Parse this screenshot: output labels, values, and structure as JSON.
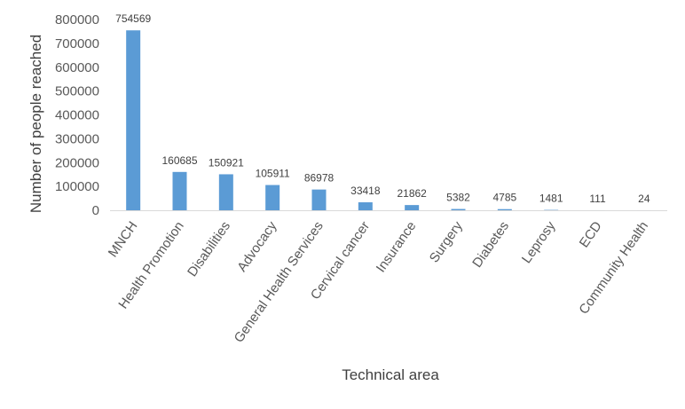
{
  "chart_data": {
    "type": "bar",
    "categories": [
      "MNCH",
      "Health Promotion",
      "Disabilities",
      "Advocacy",
      "General Health Services",
      "Cervical cancer",
      "Insurance",
      "Surgery",
      "Diabetes",
      "Leprosy",
      "ECD",
      "Community Health"
    ],
    "values": [
      754569,
      160685,
      150921,
      105911,
      86978,
      33418,
      21862,
      5382,
      4785,
      1481,
      111,
      24
    ],
    "data_labels": [
      "754569",
      "160685",
      "150921",
      "105911",
      "86978",
      "33418",
      "21862",
      "5382",
      "4785",
      "1481",
      "111",
      "24"
    ],
    "xlabel": "Technical area",
    "ylabel": "Number of people reached",
    "ylim": [
      0,
      800000
    ],
    "yticks": [
      "0",
      "100000",
      "200000",
      "300000",
      "400000",
      "500000",
      "600000",
      "700000",
      "800000"
    ],
    "grid": false,
    "bar_color": "#5b9bd5"
  }
}
